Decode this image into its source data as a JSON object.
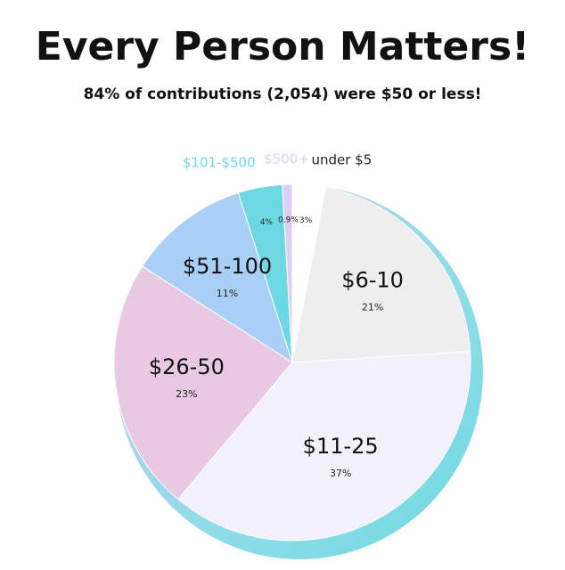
{
  "chart_data": {
    "type": "pie",
    "title": "Every Person Matters!",
    "subtitle": "84% of contributions (2,054) were $50 or less!",
    "categories": [
      "under $5",
      "$6-10",
      "$11-25",
      "$26-50",
      "$51-100",
      "$101-$500",
      "$500+"
    ],
    "values": [
      3,
      21,
      37,
      23,
      11,
      4,
      0.9
    ],
    "value_labels": [
      "3%",
      "21%",
      "37%",
      "23%",
      "11%",
      "4%",
      "0.9%"
    ],
    "colors": [
      "#ffffff",
      "#eeeeee",
      "#f2f0fa",
      "#e8c8e2",
      "#aacff5",
      "#6dd8e3",
      "#dccff5"
    ]
  }
}
